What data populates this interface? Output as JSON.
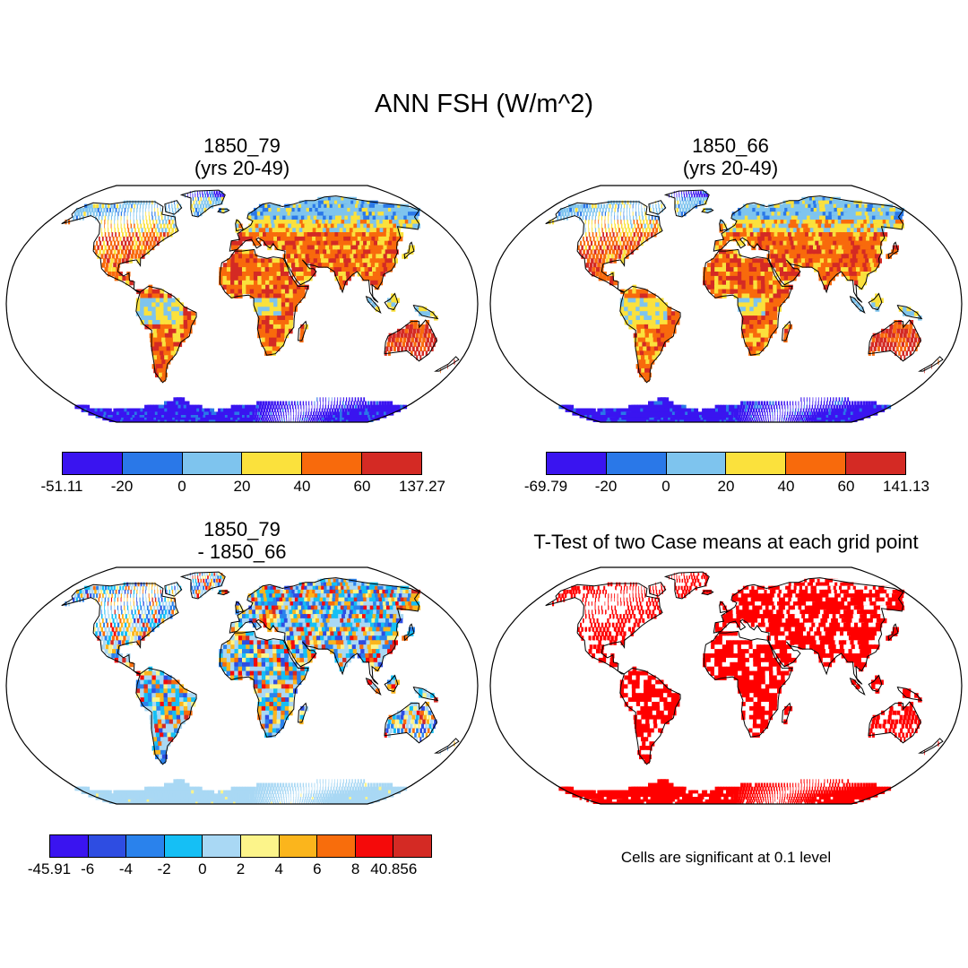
{
  "title": "ANN FSH (W/m^2)",
  "panels": [
    {
      "id": "p1",
      "title_line1": "1850_79",
      "title_line2": "(yrs 20-49)"
    },
    {
      "id": "p2",
      "title_line1": "1850_66",
      "title_line2": "(yrs 20-49)"
    },
    {
      "id": "p3",
      "title_line1": "1850_79",
      "title_line2": "- 1850_66"
    },
    {
      "id": "p4",
      "title_line1": "T-Test of two Case means at each grid point"
    }
  ],
  "colorbars": {
    "top_left": {
      "colors": [
        "#3a14f0",
        "#2a78e8",
        "#7ec4ee",
        "#fbe13c",
        "#f86a0c",
        "#d42a24"
      ],
      "labels": [
        "-51.11",
        "-20",
        "0",
        "20",
        "40",
        "60",
        "137.27"
      ]
    },
    "top_right": {
      "colors": [
        "#3a14f0",
        "#2a78e8",
        "#7ec4ee",
        "#fbe13c",
        "#f86a0c",
        "#d42a24"
      ],
      "labels": [
        "-69.79",
        "-20",
        "0",
        "20",
        "40",
        "60",
        "141.13"
      ]
    },
    "bottom_left": {
      "colors": [
        "#3a14f0",
        "#2e4de2",
        "#2a82ec",
        "#15bff5",
        "#a9d8f4",
        "#fcf48a",
        "#fbb51c",
        "#f86d0c",
        "#f50a0a",
        "#d42a24"
      ],
      "labels": [
        "-45.91",
        "-6",
        "-4",
        "-2",
        "0",
        "2",
        "4",
        "6",
        "8",
        "40.856"
      ]
    }
  },
  "note": "Cells are significant at 0.1 level",
  "map_colors": {
    "ocean": "#ffffff",
    "coast": "#000000",
    "significant": "#ff0000"
  }
}
